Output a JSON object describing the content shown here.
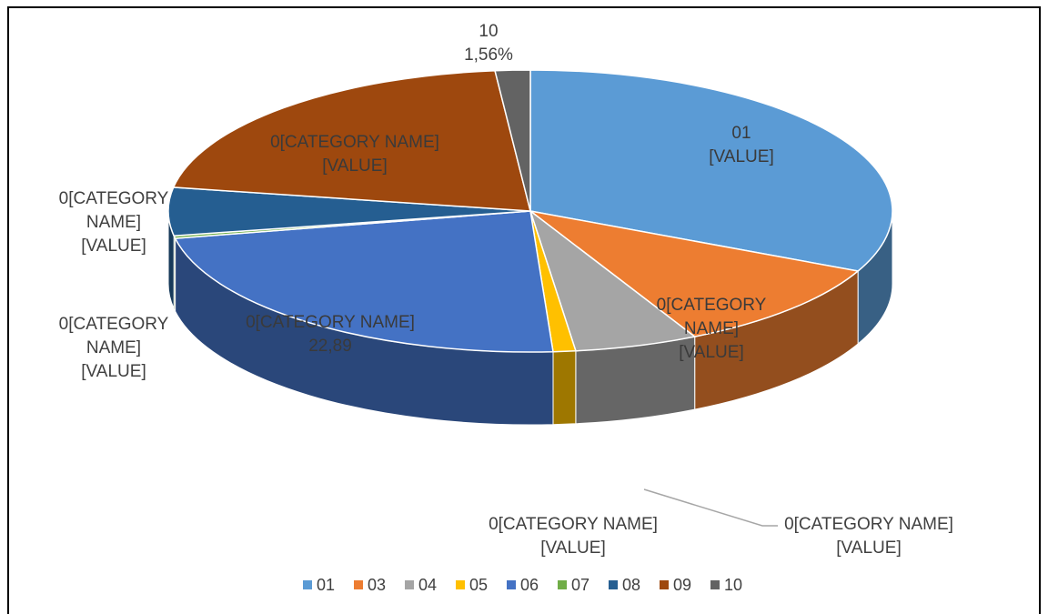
{
  "chart_data": {
    "type": "pie3d",
    "categories": [
      "01",
      "03",
      "04",
      "05",
      "06",
      "07",
      "08",
      "09",
      "10"
    ],
    "values": [
      32,
      10.5,
      5.5,
      1,
      22.89,
      0.3,
      5.5,
      20.75,
      1.56
    ],
    "label_names": [
      "01",
      "0[CATEGORY NAME]",
      "0[CATEGORY NAME]",
      "0[CATEGORY NAME]",
      "0[CATEGORY NAME]",
      "0[CATEGORY NAME]",
      "0[CATEGORY NAME]",
      "0[CATEGORY NAME]",
      "10"
    ],
    "value_labels": [
      "[VALUE]",
      "[VALUE]",
      "[VALUE]",
      "[VALUE]",
      "22,89",
      "[VALUE]",
      "[VALUE]",
      "[VALUE]",
      "1,56%"
    ],
    "colors": [
      "#5b9bd5",
      "#ed7d31",
      "#a5a5a5",
      "#ffc000",
      "#4472c4",
      "#70ad47",
      "#255e91",
      "#9e480e",
      "#636363"
    ],
    "legend": "bottom"
  }
}
